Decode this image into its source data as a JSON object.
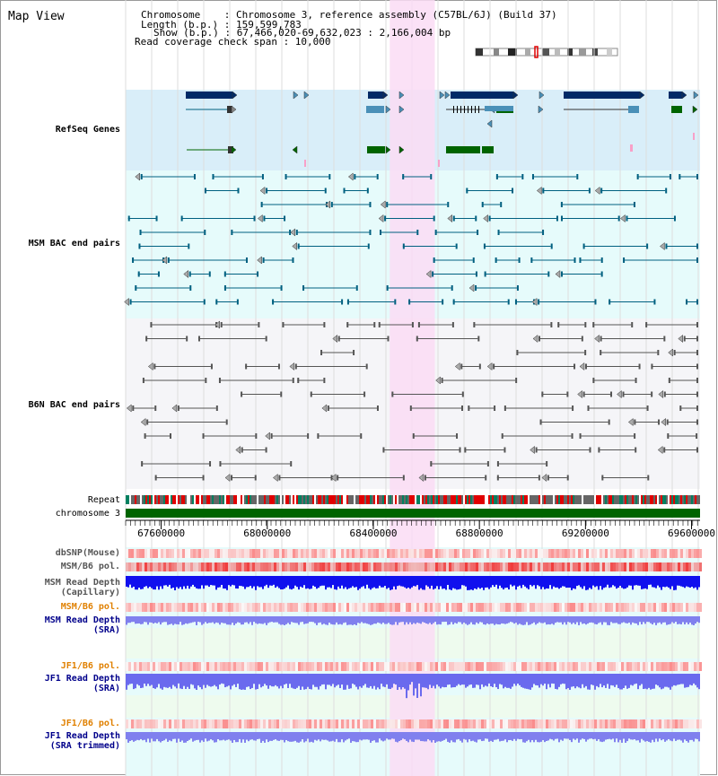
{
  "window": {
    "title": "Map View"
  },
  "header": {
    "chromosome_line": "Chromosome    : Chromosome 3, reference assembly (C57BL/6J) (Build 37)",
    "length_line": "Length (b.p.) : 159,599,783",
    "show_line": "Show (b.p.) : 67,466,020-69,632,023 : 2,166,004 bp",
    "coverage_line": "Read coverage check span : 10,000"
  },
  "axis": {
    "range_bp": [
      67466020,
      69632023
    ],
    "tick_labels": [
      "67600000",
      "68000000",
      "68400000",
      "68800000",
      "69200000",
      "69600000"
    ],
    "highlight_bp": [
      68462000,
      68632000
    ]
  },
  "tracks": {
    "refseq": {
      "label": "RefSeq Genes",
      "color": "#00008b"
    },
    "msm_bac": {
      "label": "MSM BAC end pairs",
      "color": "#006080"
    },
    "b6n_bac": {
      "label": "B6N BAC end pairs",
      "color": "#555555"
    },
    "repeat": {
      "label": "Repeat"
    },
    "chromosome": {
      "label": "chromosome 3",
      "color": "#006400"
    },
    "dbsnp": {
      "label": "dbSNP(Mouse)"
    },
    "msm_pol1": {
      "label": "MSM/B6 pol."
    },
    "msm_depth_cap": {
      "label": "MSM Read Depth\n(Capillary)"
    },
    "msm_pol2": {
      "label": "MSM/B6 pol.",
      "color": "#e08000"
    },
    "msm_depth_sra": {
      "label": "MSM Read Depth\n(SRA)"
    },
    "jf1_pol1": {
      "label": "JF1/B6 pol.",
      "color": "#e08000"
    },
    "jf1_depth_sra": {
      "label": "JF1 Read Depth\n(SRA)"
    },
    "jf1_pol2": {
      "label": "JF1/B6 pol.",
      "color": "#e08000"
    },
    "jf1_depth_trim": {
      "label": "JF1 Read Depth\n(SRA trimmed)"
    }
  },
  "colors": {
    "refseq_bg": "#d9eef9",
    "msm_bg": "#e6fbfb",
    "b6n_bg": "#f5f5f8",
    "highlight": "#fadcf5",
    "dark_blue": "#002a66",
    "mid_blue": "#4a90b8",
    "green": "#006400",
    "red": "#e00000"
  }
}
